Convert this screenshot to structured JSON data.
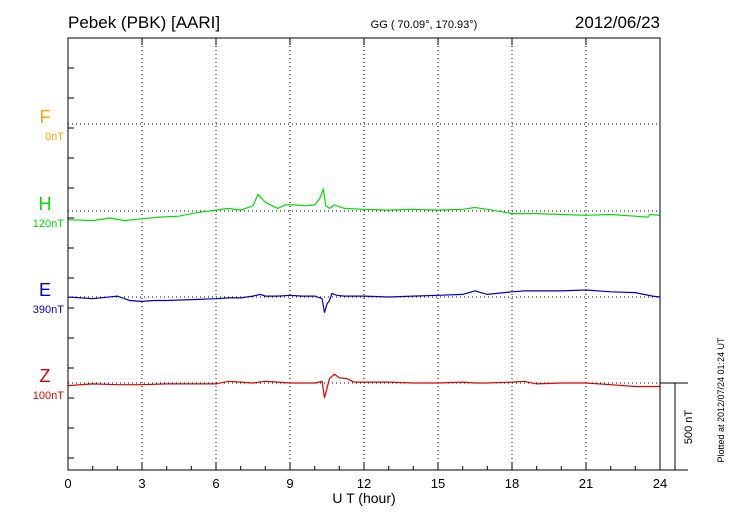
{
  "header": {
    "station": "Pebek (PBK)  [AARI]",
    "coords": "GG ( 70.09°, 170.93°)",
    "date": "2012/06/23"
  },
  "footer": {
    "plotted": "Plotted at 2012/07/24 01:24 UT"
  },
  "colors": {
    "F": "#f5a800",
    "H": "#00dd00",
    "E": "#0000cc",
    "Z": "#dd0000"
  },
  "chart_data": {
    "type": "line",
    "xlabel": "U T (hour)",
    "xlim": [
      0,
      24
    ],
    "xticks": [
      "0",
      "3",
      "6",
      "9",
      "12",
      "15",
      "18",
      "21",
      "24"
    ],
    "scale_label": "500 nT",
    "scale_nT": 500,
    "grid": true,
    "series": [
      {
        "name": "F",
        "offset_label": "0nT",
        "color": "#f5a800",
        "points": []
      },
      {
        "name": "H",
        "offset_label": "120nT",
        "color": "#00dd00",
        "points": [
          [
            0,
            -50
          ],
          [
            1,
            -55
          ],
          [
            1.7,
            -40
          ],
          [
            2.3,
            -55
          ],
          [
            3,
            -45
          ],
          [
            3.7,
            -35
          ],
          [
            4.5,
            -30
          ],
          [
            5.2,
            -10
          ],
          [
            6,
            5
          ],
          [
            6.5,
            15
          ],
          [
            7,
            5
          ],
          [
            7.5,
            30
          ],
          [
            7.7,
            95
          ],
          [
            8,
            50
          ],
          [
            8.5,
            15
          ],
          [
            8.8,
            35
          ],
          [
            9.2,
            35
          ],
          [
            9.6,
            30
          ],
          [
            10,
            35
          ],
          [
            10.2,
            70
          ],
          [
            10.35,
            125
          ],
          [
            10.45,
            30
          ],
          [
            10.6,
            15
          ],
          [
            10.8,
            35
          ],
          [
            11.2,
            15
          ],
          [
            12,
            10
          ],
          [
            13,
            5
          ],
          [
            14,
            10
          ],
          [
            15,
            5
          ],
          [
            16,
            10
          ],
          [
            16.5,
            20
          ],
          [
            17,
            10
          ],
          [
            18,
            -15
          ],
          [
            19,
            -15
          ],
          [
            20,
            -20
          ],
          [
            21,
            -25
          ],
          [
            22,
            -20
          ],
          [
            23,
            -30
          ],
          [
            23.5,
            -35
          ],
          [
            23.6,
            -20
          ],
          [
            24,
            -25
          ]
        ]
      },
      {
        "name": "E",
        "offset_label": "390nT",
        "color": "#0000cc",
        "points": [
          [
            0,
            0
          ],
          [
            1,
            -10
          ],
          [
            2,
            5
          ],
          [
            2.5,
            -20
          ],
          [
            3,
            -25
          ],
          [
            3.5,
            -20
          ],
          [
            4,
            -20
          ],
          [
            5,
            -15
          ],
          [
            6,
            -10
          ],
          [
            6.5,
            -5
          ],
          [
            7,
            -5
          ],
          [
            7.5,
            5
          ],
          [
            7.8,
            15
          ],
          [
            8,
            5
          ],
          [
            8.5,
            5
          ],
          [
            9,
            10
          ],
          [
            9.5,
            5
          ],
          [
            10,
            5
          ],
          [
            10.3,
            -10
          ],
          [
            10.4,
            -90
          ],
          [
            10.5,
            -40
          ],
          [
            10.6,
            -20
          ],
          [
            10.7,
            20
          ],
          [
            10.9,
            10
          ],
          [
            11.2,
            5
          ],
          [
            12,
            5
          ],
          [
            13,
            0
          ],
          [
            14,
            5
          ],
          [
            15,
            10
          ],
          [
            16,
            15
          ],
          [
            16.5,
            35
          ],
          [
            17,
            15
          ],
          [
            18,
            30
          ],
          [
            18.5,
            35
          ],
          [
            20,
            35
          ],
          [
            21,
            40
          ],
          [
            22,
            30
          ],
          [
            23,
            25
          ],
          [
            23.7,
            5
          ],
          [
            24,
            0
          ]
        ]
      },
      {
        "name": "Z",
        "offset_label": "100nT",
        "color": "#dd0000",
        "points": [
          [
            0,
            -15
          ],
          [
            1,
            -5
          ],
          [
            2,
            -10
          ],
          [
            3,
            -10
          ],
          [
            4,
            -5
          ],
          [
            5,
            -5
          ],
          [
            6,
            -5
          ],
          [
            6.5,
            10
          ],
          [
            7,
            5
          ],
          [
            7.5,
            0
          ],
          [
            8,
            10
          ],
          [
            8.5,
            5
          ],
          [
            9,
            0
          ],
          [
            10,
            0
          ],
          [
            10.3,
            10
          ],
          [
            10.4,
            -85
          ],
          [
            10.5,
            -30
          ],
          [
            10.6,
            25
          ],
          [
            10.8,
            50
          ],
          [
            11,
            30
          ],
          [
            11.3,
            25
          ],
          [
            11.6,
            5
          ],
          [
            12,
            5
          ],
          [
            13,
            5
          ],
          [
            14,
            0
          ],
          [
            15,
            0
          ],
          [
            16,
            5
          ],
          [
            16.5,
            0
          ],
          [
            17,
            0
          ],
          [
            18,
            5
          ],
          [
            18.5,
            10
          ],
          [
            19,
            -5
          ],
          [
            20,
            0
          ],
          [
            21,
            0
          ],
          [
            22,
            -10
          ],
          [
            23,
            -20
          ],
          [
            24,
            -20
          ]
        ]
      }
    ]
  }
}
